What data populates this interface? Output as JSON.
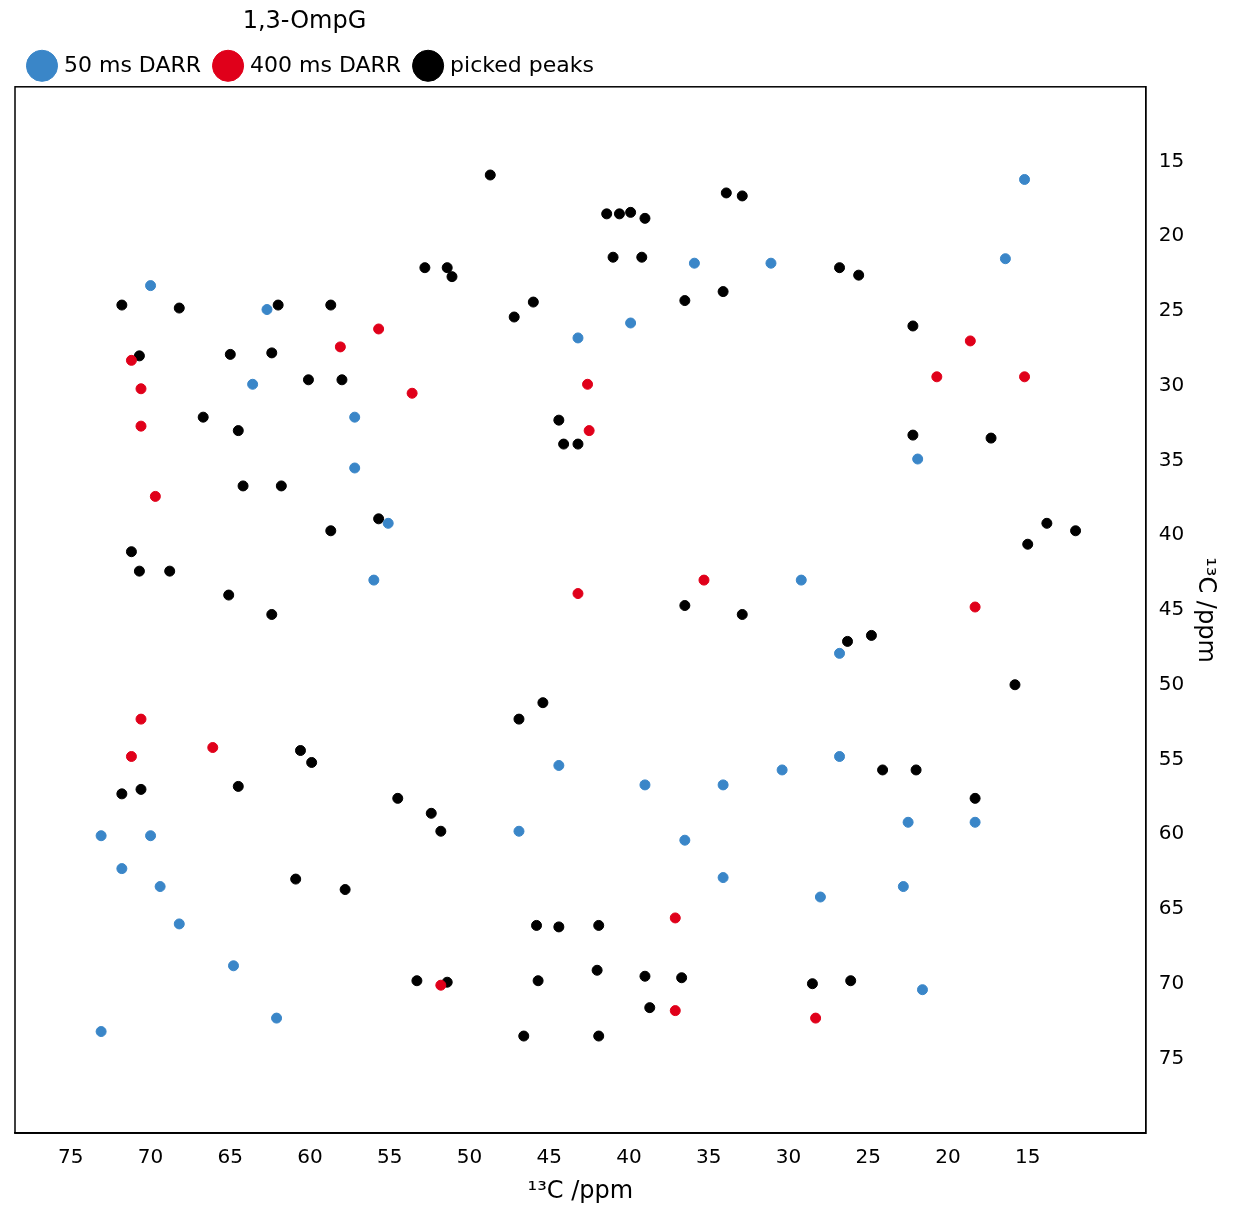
{
  "chart_data": {
    "type": "scatter",
    "title": "1,3-OmpG",
    "x_label": "¹³C /ppm",
    "y_label": "¹³C /ppm",
    "xlim": [
      78.5,
      7.6
    ],
    "ylim": [
      80,
      10
    ],
    "xticks": [
      75,
      70,
      65,
      60,
      55,
      50,
      45,
      40,
      35,
      30,
      25,
      20,
      15
    ],
    "yticks": [
      15,
      20,
      25,
      30,
      35,
      40,
      45,
      50,
      55,
      60,
      65,
      70,
      75
    ],
    "grid": false,
    "legend": "top left",
    "series": [
      {
        "name": "50 ms DARR",
        "color": "#3a86c8",
        "marker": "circle",
        "x": [
          70.0,
          62.7,
          63.6,
          57.2,
          57.2,
          56.0,
          55.1,
          43.2,
          39.9,
          35.9,
          31.1,
          16.4,
          15.2,
          21.9,
          29.2,
          26.8,
          73.1,
          70.0,
          71.8,
          69.4,
          68.2,
          73.1,
          64.8,
          62.1,
          46.9,
          44.4,
          39.0,
          34.1,
          30.4,
          26.8,
          34.1,
          36.5,
          28.0,
          22.8,
          22.5,
          18.3,
          21.6
        ],
        "y": [
          23.3,
          24.9,
          29.9,
          32.1,
          35.5,
          43.0,
          39.2,
          26.8,
          25.8,
          21.8,
          21.8,
          21.5,
          16.2,
          34.9,
          43.0,
          47.9,
          60.1,
          60.1,
          62.3,
          63.5,
          66.0,
          73.2,
          68.8,
          72.3,
          59.8,
          55.4,
          56.7,
          56.7,
          55.7,
          54.8,
          62.9,
          60.4,
          64.2,
          63.5,
          59.2,
          59.2,
          70.4
        ]
      },
      {
        "name": "400 ms DARR",
        "color": "#e0001a",
        "marker": "circle",
        "x": [
          70.6,
          70.6,
          69.7,
          71.2,
          55.7,
          53.6,
          58.1,
          42.5,
          42.6,
          43.2,
          35.3,
          18.3,
          70.6,
          71.2,
          66.1,
          51.8,
          37.1,
          28.3,
          37.1,
          18.6,
          15.2,
          20.7
        ],
        "y": [
          30.2,
          32.7,
          37.4,
          28.3,
          26.2,
          30.5,
          27.4,
          33.0,
          29.9,
          43.9,
          43.0,
          44.8,
          52.3,
          54.8,
          54.2,
          70.1,
          71.8,
          72.3,
          65.6,
          27.0,
          29.4,
          29.4
        ]
      },
      {
        "name": "picked peaks",
        "color": "#000000",
        "marker": "circle",
        "x": [
          48.7,
          41.4,
          40.6,
          39.9,
          39.0,
          33.9,
          32.9,
          41.0,
          39.2,
          52.8,
          51.4,
          51.1,
          71.8,
          68.2,
          62.0,
          58.7,
          46.0,
          47.2,
          36.5,
          34.1,
          26.8,
          25.6,
          22.2,
          70.7,
          65.0,
          62.4,
          60.1,
          58.0,
          66.7,
          64.5,
          44.4,
          44.1,
          43.2,
          22.2,
          17.3,
          64.2,
          61.8,
          55.7,
          58.7,
          12.0,
          13.8,
          15.0,
          71.2,
          70.7,
          68.8,
          65.1,
          62.4,
          32.9,
          36.5,
          26.3,
          24.8,
          15.8,
          71.8,
          70.6,
          64.5,
          60.6,
          59.9,
          54.5,
          52.4,
          51.8,
          45.4,
          46.9,
          24.1,
          22.0,
          18.3,
          60.9,
          57.8,
          45.8,
          44.4,
          41.9,
          45.7,
          39.0,
          36.7,
          28.5,
          26.1,
          53.3,
          51.4,
          46.6,
          41.9,
          38.7,
          42.0
        ],
        "y": [
          15.9,
          18.5,
          18.5,
          18.4,
          18.8,
          17.1,
          17.3,
          21.4,
          21.4,
          22.1,
          22.1,
          22.7,
          24.6,
          24.8,
          24.6,
          24.6,
          24.4,
          25.4,
          24.3,
          23.7,
          22.1,
          22.6,
          26.0,
          28.0,
          27.9,
          27.8,
          29.6,
          29.6,
          32.1,
          33.0,
          32.3,
          33.9,
          33.9,
          33.3,
          33.5,
          36.7,
          36.7,
          38.9,
          39.7,
          39.7,
          39.2,
          40.6,
          41.1,
          42.4,
          42.4,
          44.0,
          45.3,
          45.3,
          44.7,
          47.1,
          46.7,
          50.0,
          57.3,
          57.0,
          56.8,
          54.4,
          55.2,
          57.6,
          58.6,
          59.8,
          51.2,
          52.3,
          55.7,
          55.7,
          57.6,
          63.0,
          63.7,
          66.1,
          66.2,
          66.1,
          69.8,
          69.5,
          69.6,
          70.0,
          69.8,
          69.8,
          69.9,
          73.5,
          73.5,
          71.6,
          69.1
        ]
      }
    ]
  }
}
